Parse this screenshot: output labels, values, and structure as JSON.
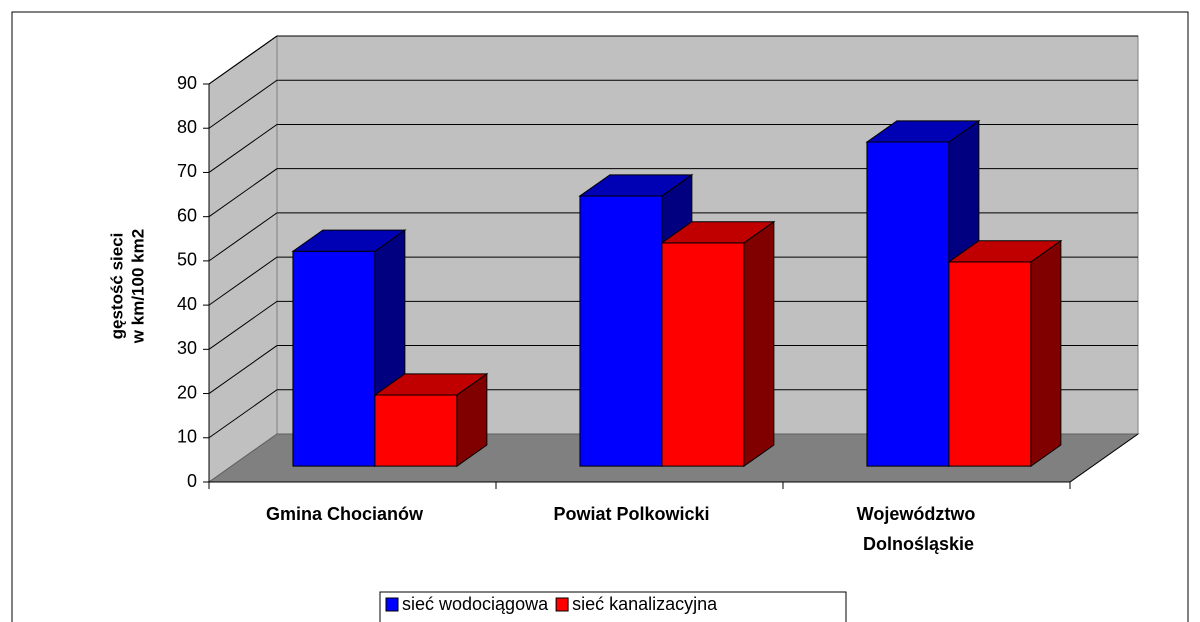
{
  "chart_data": {
    "type": "bar3d",
    "ylabel": [
      "gęstość sieci",
      "w km/100 km2"
    ],
    "categories": [
      "Gmina Chocianów",
      "Powiat Polkowicki",
      "Województwo Dolnośląskie"
    ],
    "series": [
      {
        "name": "sieć wodociągowa",
        "color": "#0000ff",
        "side": "#000080",
        "top": "#0000b4",
        "values": [
          48.6,
          61.1,
          73.3
        ]
      },
      {
        "name": "sieć kanalizacyjna",
        "color": "#ff0000",
        "side": "#800000",
        "top": "#c00000",
        "values": [
          16.1,
          50.5,
          46.2
        ]
      }
    ],
    "ylim": [
      0,
      90
    ],
    "yticks": [
      0,
      10,
      20,
      30,
      40,
      50,
      60,
      70,
      80,
      90
    ],
    "grid": true,
    "legend": "bottom"
  }
}
